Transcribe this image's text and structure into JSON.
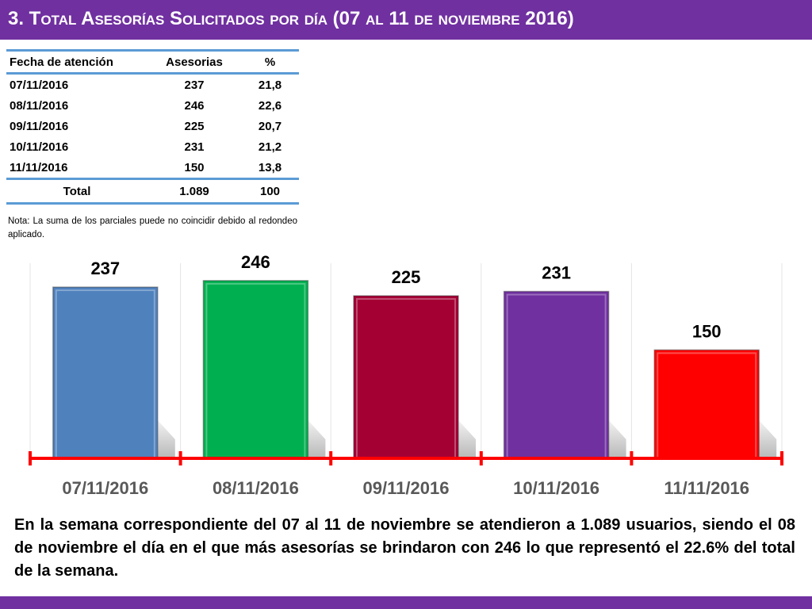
{
  "title": "3.  Total Asesorías Solicitados por día  (07 al 11 de noviembre  2016)",
  "table": {
    "headers": [
      "Fecha de atención",
      "Asesorias",
      "%"
    ],
    "rows": [
      [
        "07/11/2016",
        "237",
        "21,8"
      ],
      [
        "08/11/2016",
        "246",
        "22,6"
      ],
      [
        "09/11/2016",
        "225",
        "20,7"
      ],
      [
        "10/11/2016",
        "231",
        "21,2"
      ],
      [
        "11/11/2016",
        "150",
        "13,8"
      ]
    ],
    "total": [
      "Total",
      "1.089",
      "100"
    ]
  },
  "note": "Nota: La suma de los parciales puede no coincidir debido al redondeo aplicado.",
  "chart_data": {
    "type": "bar",
    "categories": [
      "07/11/2016",
      "08/11/2016",
      "09/11/2016",
      "10/11/2016",
      "11/11/2016"
    ],
    "values": [
      237,
      246,
      225,
      231,
      150
    ],
    "data_labels": [
      "237",
      "246",
      "225",
      "231",
      "150"
    ],
    "colors": [
      "#4f81bd",
      "#00b050",
      "#a50034",
      "#7030a0",
      "#ff0000"
    ],
    "axis_color": "#ff0000",
    "ylim": [
      0,
      270
    ],
    "grid": true,
    "legend": "none",
    "title": "",
    "xlabel": "",
    "ylabel": ""
  },
  "summary": "En la semana correspondiente del 07 al 11 de noviembre se atendieron a 1.089 usuarios, siendo el 08 de noviembre el día en el que más asesorías se brindaron con 246 lo que representó el 22.6% del total de la semana.",
  "colors": {
    "header": "#7030a0",
    "table_rule": "#5b9bd5"
  }
}
